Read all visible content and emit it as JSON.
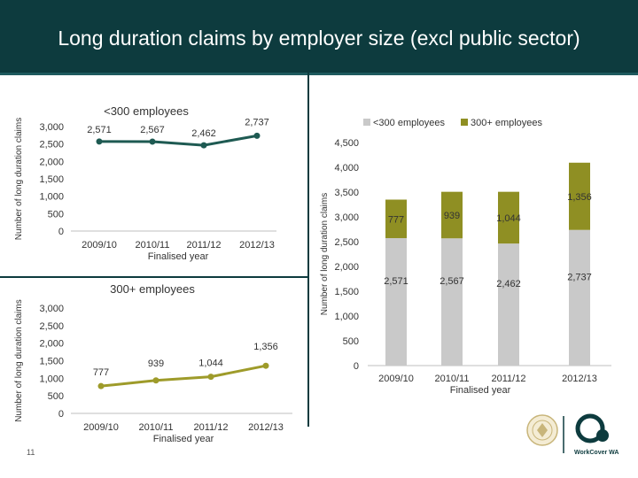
{
  "title": "Long duration claims by employer size (excl public sector)",
  "page_number": "11",
  "colors": {
    "header_bg": "#0d3b3e",
    "small_series": "#1e5a52",
    "large_series": "#9e9b2a",
    "bar_small": "#c9c9c9",
    "bar_large": "#8f8f23"
  },
  "icons": [
    "crest-icon",
    "worksafe-logo-icon"
  ],
  "logo_text": "WorkCover WA",
  "chart_data": [
    {
      "type": "line",
      "title": "<300 employees",
      "ylabel": "Number of long duration claims",
      "xlabel": "",
      "x_ticks": [
        "2009/10",
        "2010/11",
        "2011/12",
        "2012/13"
      ],
      "x_group_label": "Finalised year",
      "y_ticks": [
        "0",
        "500",
        "1,000",
        "1,500",
        "2,000",
        "2,500",
        "3,000"
      ],
      "ylim": [
        0,
        3000
      ],
      "grid": false,
      "series": [
        {
          "name": "<300 employees",
          "values": [
            2571,
            2567,
            2462,
            2737
          ],
          "labels": [
            "2,571",
            "2,567",
            "2,462",
            "2,737"
          ]
        }
      ]
    },
    {
      "type": "line",
      "title": "300+ employees",
      "ylabel": "Number of long duration claims",
      "xlabel": "",
      "x_ticks": [
        "2009/10",
        "2010/11",
        "2011/12",
        "2012/13"
      ],
      "x_group_label": "Finalised year",
      "y_ticks": [
        "0",
        "500",
        "1,000",
        "1,500",
        "2,000",
        "2,500",
        "3,000"
      ],
      "ylim": [
        0,
        3000
      ],
      "grid": false,
      "series": [
        {
          "name": "300+ employees",
          "values": [
            777,
            939,
            1044,
            1356
          ],
          "labels": [
            "777",
            "939",
            "1,044",
            "1,356"
          ]
        }
      ]
    },
    {
      "type": "bar",
      "stacked": true,
      "title": "",
      "ylabel": "Number of long duration claims",
      "xlabel": "",
      "categories": [
        "2009/10",
        "2010/11",
        "2011/12",
        "2012/13"
      ],
      "x_group_label": "Finalised year",
      "y_ticks": [
        "0",
        "500",
        "1,000",
        "1,500",
        "2,000",
        "2,500",
        "3,000",
        "3,500",
        "4,000",
        "4,500"
      ],
      "ylim": [
        0,
        4500
      ],
      "legend_position": "top",
      "grid": false,
      "series": [
        {
          "name": "<300 employees",
          "values": [
            2571,
            2567,
            2462,
            2737
          ],
          "labels": [
            "2,571",
            "2,567",
            "2,462",
            "2,737"
          ]
        },
        {
          "name": "300+ employees",
          "values": [
            777,
            939,
            1044,
            1356
          ],
          "labels": [
            "777",
            "939",
            "1,044",
            "1,356"
          ]
        }
      ]
    }
  ]
}
